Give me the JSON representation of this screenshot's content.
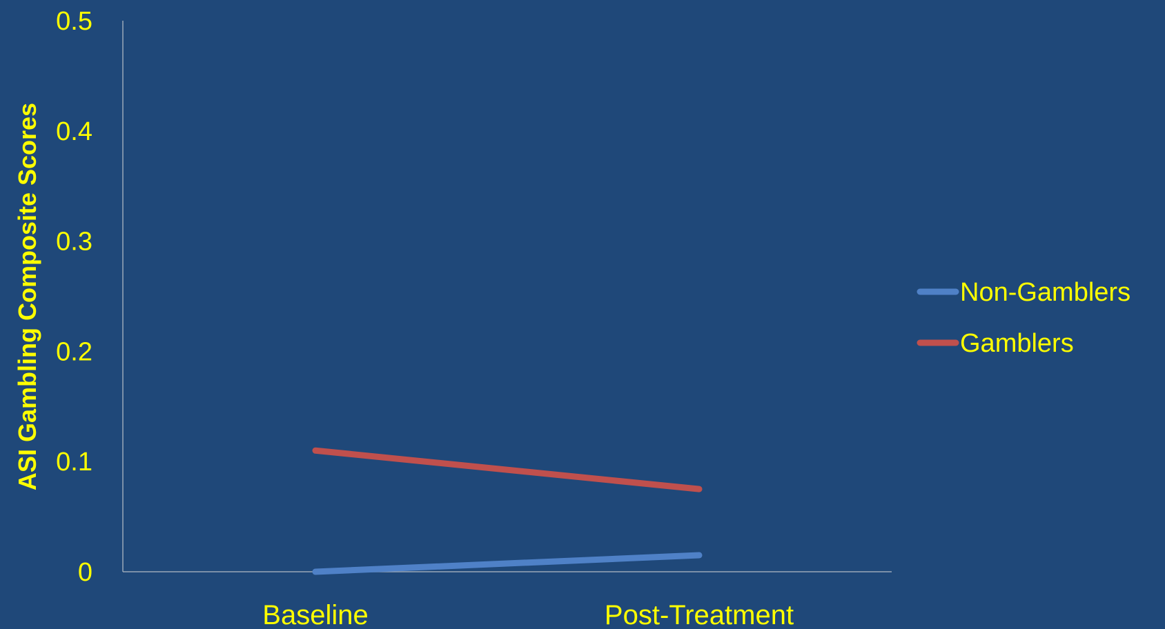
{
  "chart_data": {
    "type": "line",
    "categories": [
      "Baseline",
      "Post-Treatment"
    ],
    "series": [
      {
        "name": "Non-Gamblers",
        "values": [
          0.0,
          0.015
        ],
        "color": "#4f81c7"
      },
      {
        "name": "Gamblers",
        "values": [
          0.11,
          0.075
        ],
        "color": "#c0504d"
      }
    ],
    "ylabel": "ASI Gambling Composite Scores",
    "xlabel": "",
    "title": "",
    "ylim": [
      0,
      0.5
    ],
    "yticks": [
      "0",
      "0.1",
      "0.2",
      "0.3",
      "0.4",
      "0.5"
    ],
    "grid": false,
    "legend_position": "right"
  }
}
